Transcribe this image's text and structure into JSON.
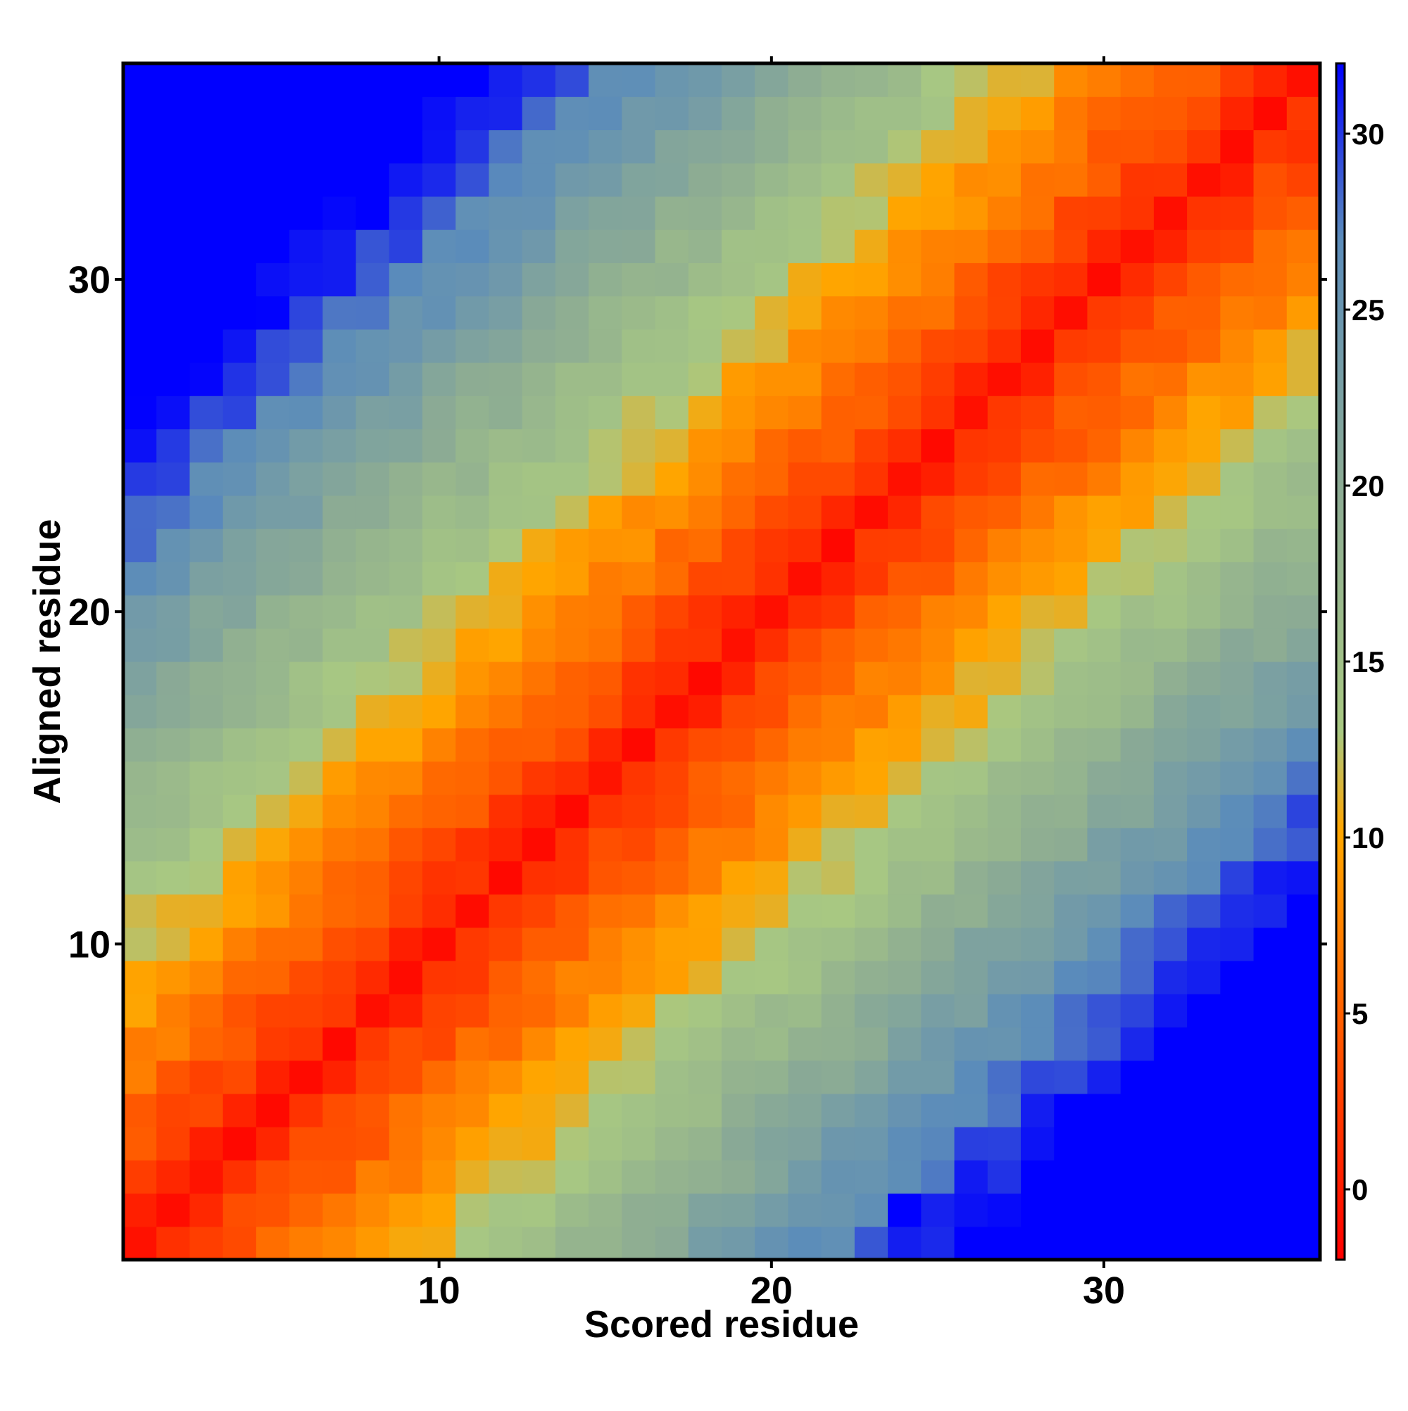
{
  "chart_data": {
    "type": "heatmap",
    "title": "",
    "xlabel": "Scored residue",
    "ylabel": "Aligned residue",
    "x_range": [
      1,
      36
    ],
    "y_range": [
      1,
      36
    ],
    "x_ticks": [
      10,
      20,
      30
    ],
    "y_ticks": [
      10,
      20,
      30
    ],
    "colorbar": {
      "range": [
        -2,
        32
      ],
      "ticks": [
        0,
        5,
        10,
        15,
        20,
        25,
        30
      ],
      "stops": [
        {
          "value": -2,
          "color": "#ff0000"
        },
        {
          "value": 10,
          "color": "#ffa500"
        },
        {
          "value": 10.2,
          "color": "#ffa500"
        },
        {
          "value": 13,
          "color": "#a8c882"
        },
        {
          "value": 20,
          "color": "#8cab94"
        },
        {
          "value": 27,
          "color": "#5b8cba"
        },
        {
          "value": 32,
          "color": "#0000ff"
        }
      ]
    },
    "z_model": "value = 1.3 * |scored - aligned| with small residue-level noise; minimum near 0 on the diagonal",
    "grid": false,
    "legend": "colorbar-right"
  }
}
